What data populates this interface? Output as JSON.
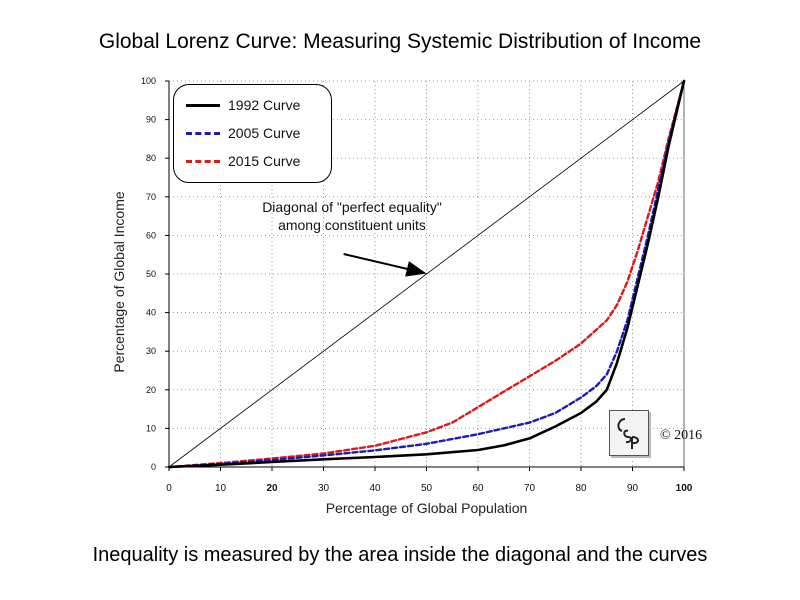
{
  "title": "Global Lorenz Curve: Measuring Systemic Distribution of Income",
  "footer": "Inequality is measured by the area inside the diagonal and the curves",
  "annotation": {
    "line1": "Diagonal of \"perfect equality\"",
    "line2": "among constituent units"
  },
  "copyright": "© 2016",
  "logo_text": "CSP",
  "colors": {
    "curve_1992": "#000000",
    "curve_2005": "#1c1cb4",
    "curve_2015": "#dd1a1a",
    "diagonal": "#000000",
    "grid": "#9a9a9a"
  },
  "chart_data": {
    "type": "line",
    "title": "Global Lorenz Curve: Measuring Systemic Distribution of Income",
    "xlabel": "Percentage of Global Population",
    "ylabel": "Percentage of Global Income",
    "xlim": [
      0,
      100
    ],
    "ylim": [
      0,
      100
    ],
    "xticks": [
      0,
      10,
      20,
      30,
      40,
      50,
      60,
      70,
      80,
      90,
      100
    ],
    "yticks": [
      0,
      10,
      20,
      30,
      40,
      50,
      60,
      70,
      80,
      90,
      100
    ],
    "grid": true,
    "legend_position": "top-left",
    "series": [
      {
        "name": "1992 Curve",
        "style": "solid",
        "x": [
          0,
          10,
          20,
          30,
          40,
          50,
          60,
          65,
          70,
          75,
          80,
          83,
          85,
          87,
          89,
          91,
          93,
          95,
          97,
          100
        ],
        "y": [
          0,
          0.6,
          1.3,
          2,
          2.6,
          3.3,
          4.4,
          5.6,
          7.4,
          10.5,
          14,
          17,
          20,
          27,
          36,
          47,
          58,
          70,
          83,
          100
        ]
      },
      {
        "name": "2005 Curve",
        "style": "dashed",
        "x": [
          0,
          10,
          20,
          30,
          40,
          50,
          60,
          65,
          70,
          75,
          80,
          83,
          85,
          87,
          89,
          91,
          93,
          95,
          97,
          100
        ],
        "y": [
          0,
          0.8,
          1.8,
          3,
          4.3,
          6,
          8.5,
          10,
          11.5,
          14,
          18,
          21,
          24,
          30,
          38,
          49,
          60,
          72,
          84,
          100
        ]
      },
      {
        "name": "2015 Curve",
        "style": "dashed",
        "x": [
          0,
          10,
          20,
          30,
          40,
          50,
          55,
          60,
          65,
          70,
          75,
          80,
          85,
          87,
          89,
          91,
          93,
          95,
          97,
          100
        ],
        "y": [
          0,
          1,
          2.2,
          3.5,
          5.5,
          9,
          11.5,
          15.5,
          19.5,
          23.5,
          27.5,
          32,
          38,
          42,
          48,
          56,
          65,
          74,
          85,
          100
        ]
      },
      {
        "name": "Diagonal of \"perfect equality\"",
        "style": "thin-solid",
        "x": [
          0,
          100
        ],
        "y": [
          0,
          100
        ]
      }
    ]
  }
}
